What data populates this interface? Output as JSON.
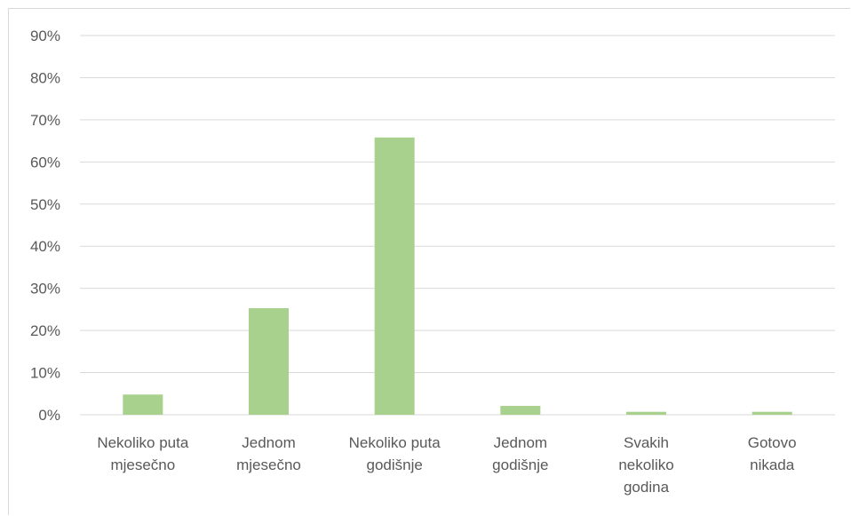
{
  "chart_data": {
    "type": "bar",
    "categories": [
      [
        "Nekoliko puta",
        "mjesečno"
      ],
      [
        "Jednom",
        "mjesečno"
      ],
      [
        "Nekoliko puta",
        "godišnje"
      ],
      [
        "Jednom",
        "godišnje"
      ],
      [
        "Svakih",
        "nekoliko",
        "godina"
      ],
      [
        "Gotovo",
        "nikada"
      ]
    ],
    "values": [
      4.8,
      25.3,
      65.8,
      2.1,
      0.7,
      0.7
    ],
    "ylim": [
      0,
      90
    ],
    "yticks": [
      "0%",
      "10%",
      "20%",
      "30%",
      "40%",
      "50%",
      "60%",
      "70%",
      "80%",
      "90%"
    ],
    "ytick_values": [
      0,
      10,
      20,
      30,
      40,
      50,
      60,
      70,
      80,
      90
    ],
    "title": "",
    "xlabel": "",
    "ylabel": "",
    "grid": true,
    "legend": "none",
    "bar_color": "#a9d18e",
    "grid_color": "#d9d9d9"
  }
}
